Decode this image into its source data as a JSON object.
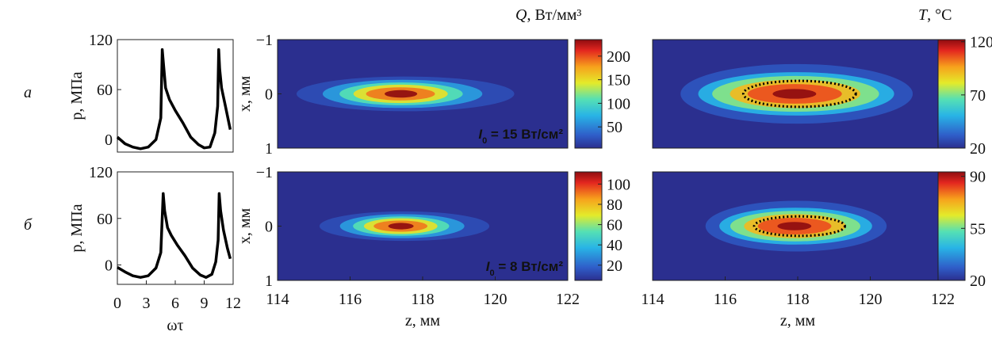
{
  "row_labels": [
    "а",
    "б"
  ],
  "colorbar_titles": {
    "Q": {
      "symbol": "Q",
      "unit": ", Вт/мм³"
    },
    "T": {
      "symbol": "T",
      "unit": ", °С"
    }
  },
  "colors": {
    "colormap": "jet",
    "background": "#2b2f8f",
    "contour": "#000000",
    "curve": "#000000"
  },
  "chart_data": [
    {
      "id": "a-pressure",
      "type": "line",
      "xlabel": "ωτ",
      "ylabel": "p, МПа",
      "xlim": [
        0,
        12
      ],
      "ylim": [
        -15,
        120
      ],
      "yticks": [
        0,
        60,
        120
      ],
      "xticks": [],
      "series": [
        {
          "x": [
            0,
            0.8,
            1.6,
            2.4,
            3.2,
            4.0,
            4.5,
            4.65,
            4.8,
            5.0,
            5.4,
            6.0,
            6.8,
            7.6,
            8.4,
            9.0,
            9.6,
            10.1,
            10.4,
            10.5,
            10.6,
            10.8,
            11.2,
            11.7
          ],
          "y": [
            3,
            -5,
            -9,
            -11,
            -9,
            0,
            26,
            108,
            88,
            62,
            48,
            35,
            20,
            3,
            -6,
            -10,
            -9,
            8,
            40,
            108,
            85,
            62,
            40,
            12
          ]
        }
      ]
    },
    {
      "id": "b-pressure",
      "type": "line",
      "xlabel": "ωτ",
      "ylabel": "p, МПа",
      "xlim": [
        0,
        12
      ],
      "ylim": [
        -25,
        120
      ],
      "yticks": [
        0,
        60,
        120
      ],
      "xticks": [
        0,
        3,
        6,
        9,
        12
      ],
      "series": [
        {
          "x": [
            0,
            0.8,
            1.6,
            2.4,
            3.2,
            4.0,
            4.5,
            4.75,
            4.9,
            5.2,
            5.6,
            6.2,
            7.0,
            7.8,
            8.6,
            9.2,
            9.8,
            10.2,
            10.45,
            10.55,
            10.7,
            11.0,
            11.4,
            11.7
          ],
          "y": [
            -3,
            -9,
            -14,
            -16,
            -14,
            -4,
            16,
            92,
            70,
            48,
            38,
            26,
            12,
            -4,
            -13,
            -16,
            -12,
            4,
            32,
            92,
            70,
            45,
            22,
            8
          ]
        }
      ]
    },
    {
      "id": "a-Q",
      "type": "heatmap",
      "quantity": "Q",
      "xlabel": "z, мм",
      "ylabel": "x, мм",
      "xlim": [
        114,
        122
      ],
      "ylim": [
        -1,
        1
      ],
      "yticks": [
        -1,
        0,
        1
      ],
      "xticks": [],
      "colorbar": {
        "min": 5,
        "max": 235,
        "ticks": [
          50,
          100,
          150,
          200
        ]
      },
      "peak": {
        "z": 117.4,
        "x": 0,
        "value": 235
      },
      "annotation": {
        "symbol": "I",
        "sub": "0",
        "text": " = 15 Вт/см²"
      }
    },
    {
      "id": "a-T",
      "type": "heatmap",
      "quantity": "T",
      "xlabel": "z, мм",
      "ylabel": "",
      "xlim": [
        114,
        122
      ],
      "ylim": [
        -1,
        1
      ],
      "xticks": [],
      "colorbar": {
        "min": 20,
        "max": 122,
        "ticks": [
          20,
          70,
          120
        ]
      },
      "peak": {
        "z": 117.9,
        "x": 0,
        "value": 122
      }
    },
    {
      "id": "b-Q",
      "type": "heatmap",
      "quantity": "Q",
      "xlabel": "z, мм",
      "ylabel": "x, мм",
      "xlim": [
        114,
        122
      ],
      "ylim": [
        -1,
        1
      ],
      "yticks": [
        -1,
        0,
        1
      ],
      "xticks": [
        114,
        116,
        118,
        120,
        122
      ],
      "colorbar": {
        "min": 5,
        "max": 112,
        "ticks": [
          20,
          40,
          60,
          80,
          100
        ]
      },
      "peak": {
        "z": 117.4,
        "x": 0,
        "value": 112
      },
      "annotation": {
        "symbol": "I",
        "sub": "0",
        "text": " = 8 Вт/см²"
      }
    },
    {
      "id": "b-T",
      "type": "heatmap",
      "quantity": "T",
      "xlabel": "z, мм",
      "ylabel": "",
      "xlim": [
        114,
        122
      ],
      "ylim": [
        -1,
        1
      ],
      "xticks": [
        114,
        116,
        118,
        120,
        122
      ],
      "colorbar": {
        "min": 20,
        "max": 93,
        "ticks": [
          20,
          55,
          90
        ]
      },
      "peak": {
        "z": 117.9,
        "x": 0,
        "value": 93
      }
    }
  ]
}
